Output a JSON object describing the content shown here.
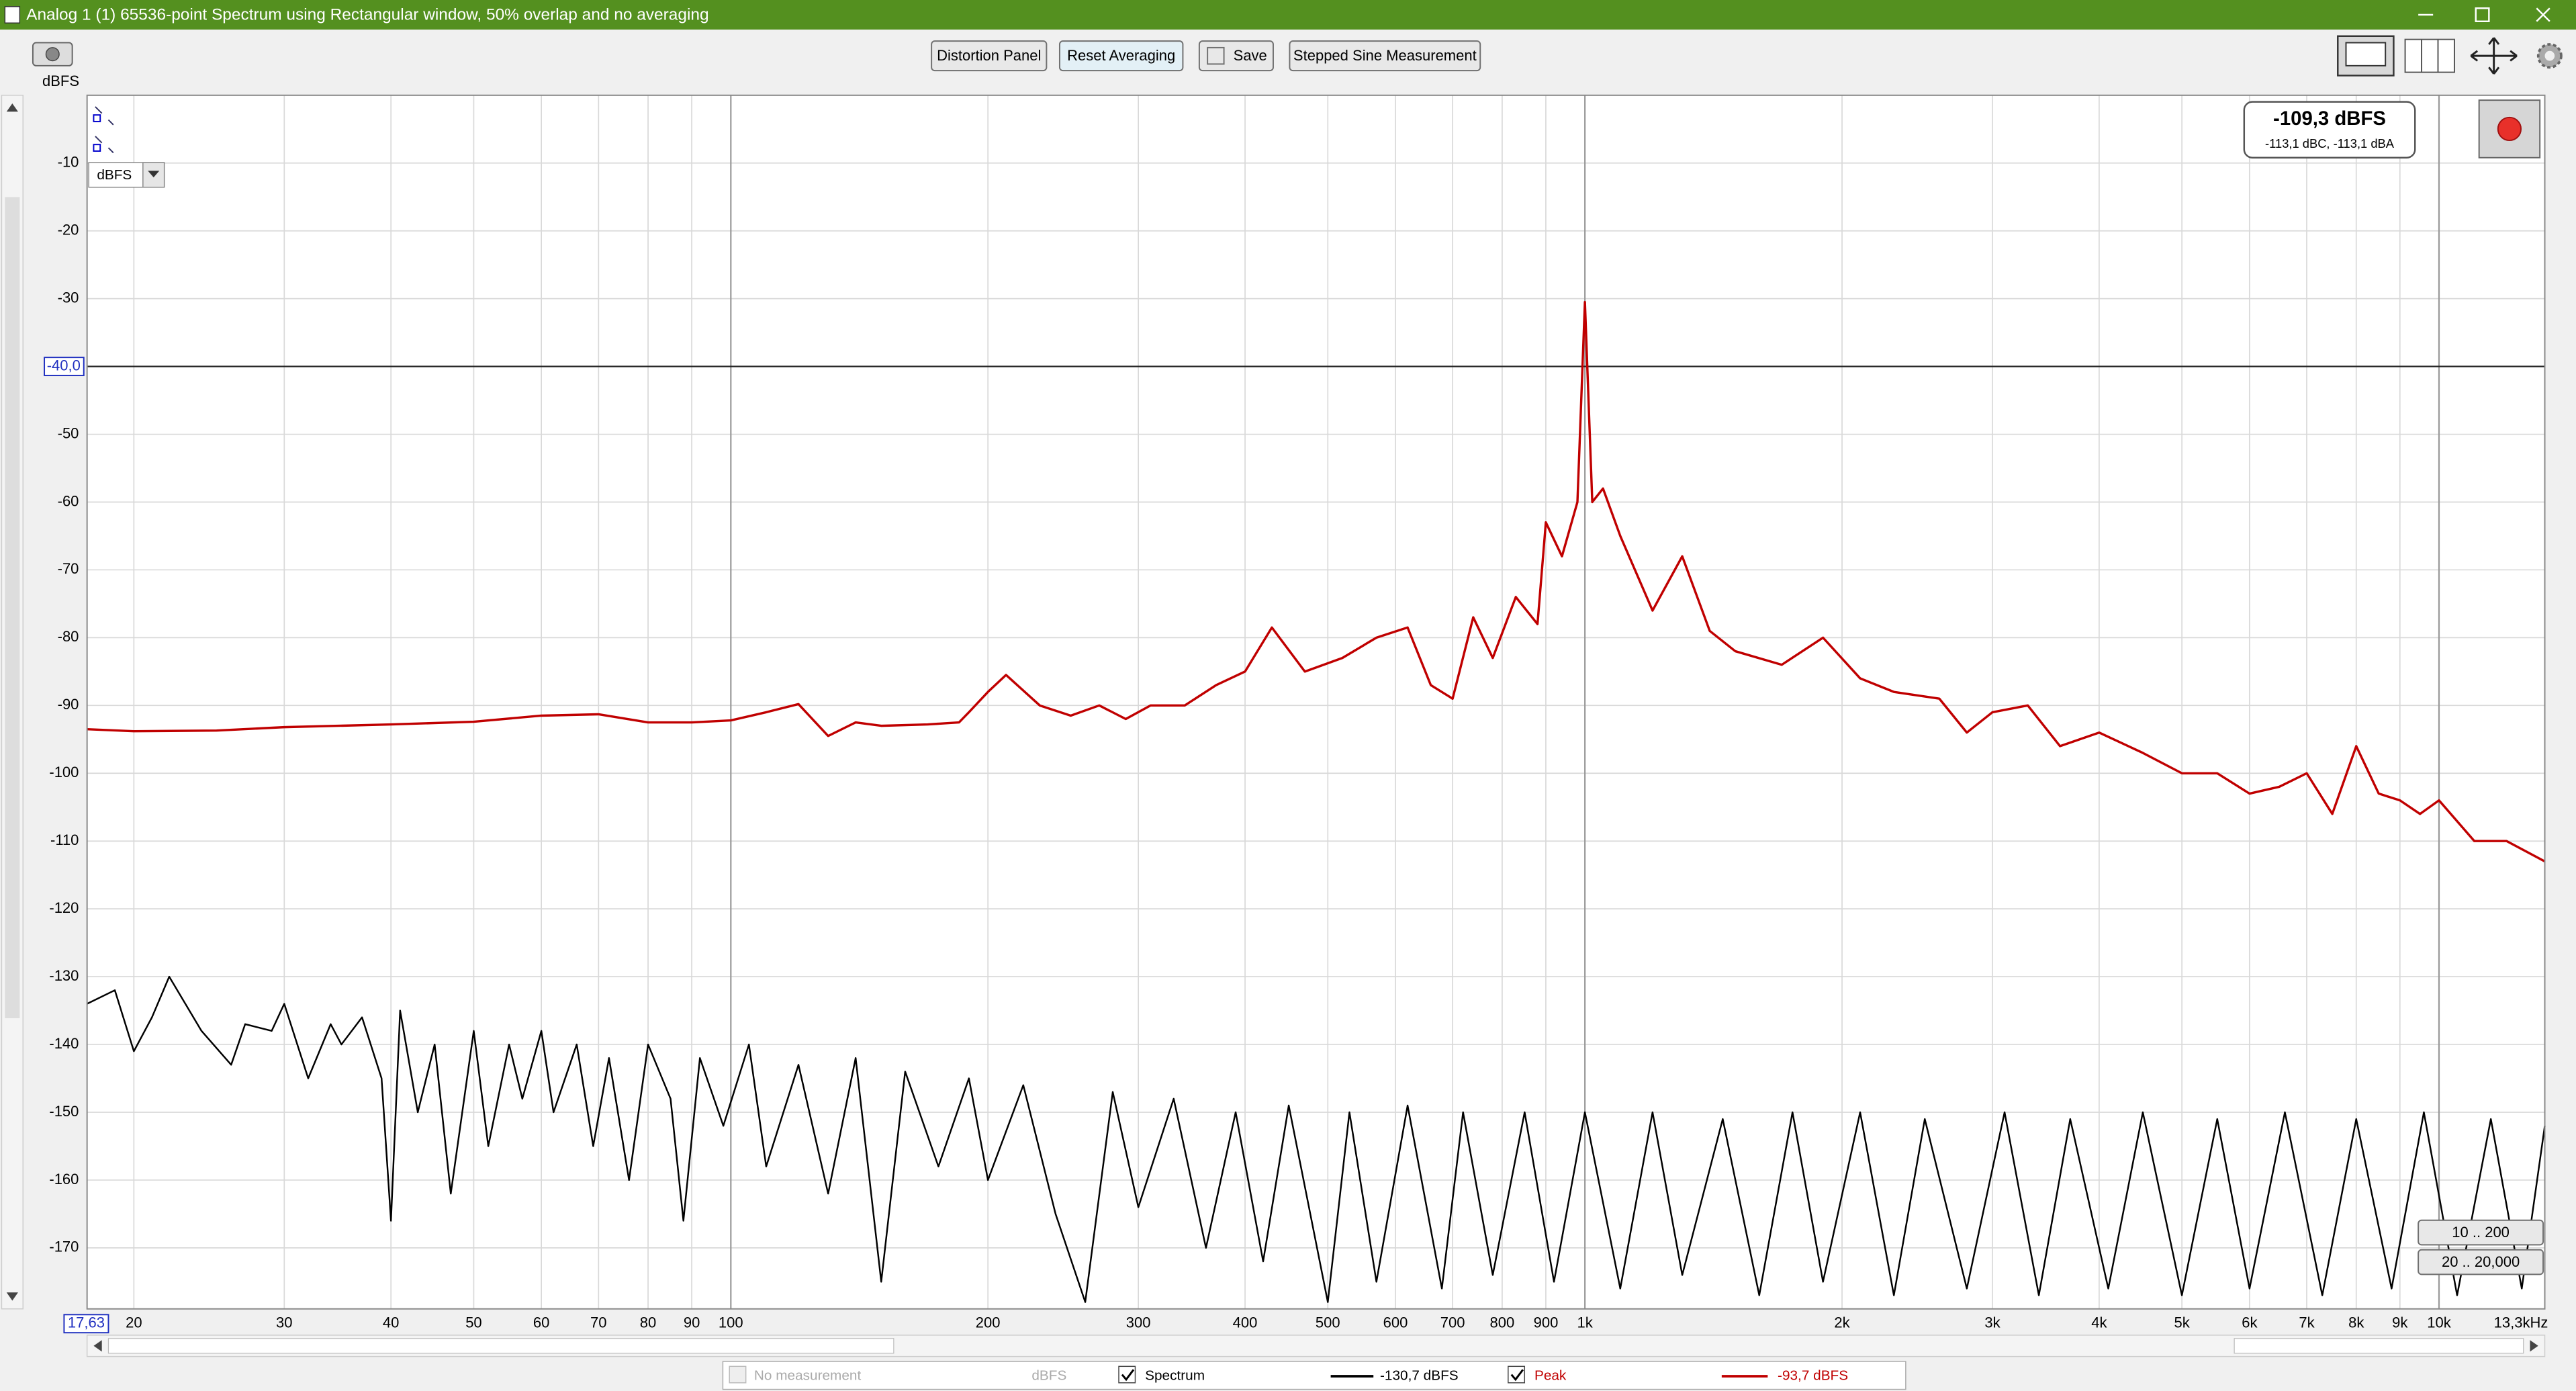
{
  "window": {
    "title": "Analog 1 (1) 65536-point Spectrum using Rectangular window, 50% overlap and no averaging"
  },
  "toolbar": {
    "buttons": [
      "Distortion Panel",
      "Reset Averaging",
      "Save",
      "Stepped Sine Measurement"
    ]
  },
  "controls": {
    "unit_select": "dBFS",
    "range_buttons": [
      "10 .. 200",
      "20 .. 20,000"
    ]
  },
  "readout": {
    "main": "-109,3 dBFS",
    "sub": "-113,1 dBC, -113,1 dBA"
  },
  "legend": {
    "placeholder": "No measurement",
    "placeholder_unit": "dBFS",
    "readouts": [
      "-130,7 dBFS",
      "-93,7 dBFS"
    ]
  },
  "chart_data": {
    "type": "line",
    "y_label": "dBFS",
    "x_log": true,
    "grid": true,
    "xlim": [
      17.63,
      13300
    ],
    "ylim": [
      -179,
      0
    ],
    "yticks": [
      -10,
      -20,
      -30,
      -40,
      -50,
      -60,
      -70,
      -80,
      -90,
      -100,
      -110,
      -120,
      -130,
      -140,
      -150,
      -160,
      -170
    ],
    "xticks": [
      20,
      30,
      40,
      50,
      60,
      70,
      80,
      90,
      100,
      200,
      300,
      400,
      500,
      600,
      700,
      800,
      900,
      {
        "value": 1000,
        "label": "1k"
      },
      {
        "value": 2000,
        "label": "2k"
      },
      {
        "value": 3000,
        "label": "3k"
      },
      {
        "value": 4000,
        "label": "4k"
      },
      {
        "value": 5000,
        "label": "5k"
      },
      {
        "value": 6000,
        "label": "6k"
      },
      {
        "value": 7000,
        "label": "7k"
      },
      {
        "value": 8000,
        "label": "8k"
      },
      {
        "value": 9000,
        "label": "9k"
      },
      {
        "value": 10000,
        "label": "10k"
      },
      {
        "value": 13300,
        "label": "13,3kHz"
      }
    ],
    "cursor": {
      "x": {
        "value": 17.63,
        "label": "17,63"
      },
      "y": {
        "value": -40,
        "label": "-40,0"
      }
    },
    "series": [
      {
        "name": "Spectrum",
        "color": "#000000",
        "x": [
          17.63,
          19,
          20,
          21,
          22,
          24,
          26,
          27,
          29,
          30,
          32,
          34,
          35,
          37,
          39,
          40,
          41,
          43,
          45,
          47,
          50,
          52,
          55,
          57,
          60,
          62,
          66,
          69,
          72,
          76,
          80,
          85,
          88,
          92,
          98,
          105,
          110,
          120,
          130,
          140,
          150,
          160,
          175,
          190,
          200,
          220,
          240,
          260,
          280,
          300,
          330,
          360,
          390,
          420,
          450,
          500,
          530,
          570,
          620,
          680,
          720,
          780,
          850,
          920,
          1000,
          1100,
          1200,
          1300,
          1450,
          1600,
          1750,
          1900,
          2100,
          2300,
          2500,
          2800,
          3100,
          3400,
          3700,
          4100,
          4500,
          5000,
          5500,
          6000,
          6600,
          7300,
          8000,
          8800,
          9600,
          10500,
          11500,
          12500,
          13300
        ],
        "values": [
          -134,
          -132,
          -141,
          -136,
          -130,
          -138,
          -143,
          -137,
          -138,
          -134,
          -145,
          -137,
          -140,
          -136,
          -145,
          -166,
          -135,
          -150,
          -140,
          -162,
          -138,
          -155,
          -140,
          -148,
          -138,
          -150,
          -140,
          -155,
          -142,
          -160,
          -140,
          -148,
          -166,
          -142,
          -152,
          -140,
          -158,
          -143,
          -162,
          -142,
          -175,
          -144,
          -158,
          -145,
          -160,
          -146,
          -165,
          -178,
          -147,
          -164,
          -148,
          -170,
          -150,
          -172,
          -149,
          -178,
          -150,
          -175,
          -149,
          -176,
          -150,
          -174,
          -150,
          -175,
          -150,
          -176,
          -150,
          -174,
          -151,
          -177,
          -150,
          -175,
          -150,
          -177,
          -151,
          -176,
          -150,
          -177,
          -151,
          -176,
          -150,
          -177,
          -151,
          -176,
          -150,
          -177,
          -151,
          -176,
          -150,
          -177,
          -151,
          -176,
          -152
        ]
      },
      {
        "name": "Peak",
        "color": "#c00000",
        "x": [
          17.63,
          20,
          25,
          30,
          40,
          50,
          60,
          70,
          80,
          90,
          100,
          110,
          120,
          130,
          140,
          150,
          170,
          185,
          190,
          200,
          210,
          230,
          250,
          270,
          290,
          310,
          340,
          370,
          400,
          430,
          470,
          520,
          570,
          620,
          660,
          700,
          740,
          780,
          830,
          880,
          900,
          940,
          980,
          1000,
          1020,
          1050,
          1100,
          1200,
          1300,
          1400,
          1500,
          1700,
          1900,
          2100,
          2300,
          2600,
          2800,
          3000,
          3300,
          3600,
          4000,
          4500,
          5000,
          5500,
          6000,
          6500,
          7000,
          7500,
          8000,
          8500,
          9000,
          9500,
          10000,
          11000,
          12000,
          13300
        ],
        "values": [
          -93.5,
          -93.8,
          -93.7,
          -93.2,
          -92.8,
          -92.4,
          -91.5,
          -91.3,
          -92.5,
          -92.5,
          -92.2,
          -91,
          -89.8,
          -94.5,
          -92.5,
          -93,
          -92.8,
          -92.5,
          -91,
          -88,
          -85.5,
          -90,
          -91.5,
          -90,
          -92,
          -90,
          -90,
          -87,
          -85,
          -78.5,
          -85,
          -83,
          -80,
          -78.5,
          -87,
          -89,
          -77,
          -83,
          -74,
          -78,
          -63,
          -68,
          -60,
          -30.5,
          -60,
          -58,
          -65,
          -76,
          -68,
          -79,
          -82,
          -84,
          -80,
          -86,
          -88,
          -89,
          -94,
          -91,
          -90,
          -96,
          -94,
          -97,
          -100,
          -100,
          -103,
          -102,
          -100,
          -106,
          -96,
          -103,
          -104,
          -106,
          -104,
          -110,
          -110,
          -113
        ]
      }
    ]
  }
}
